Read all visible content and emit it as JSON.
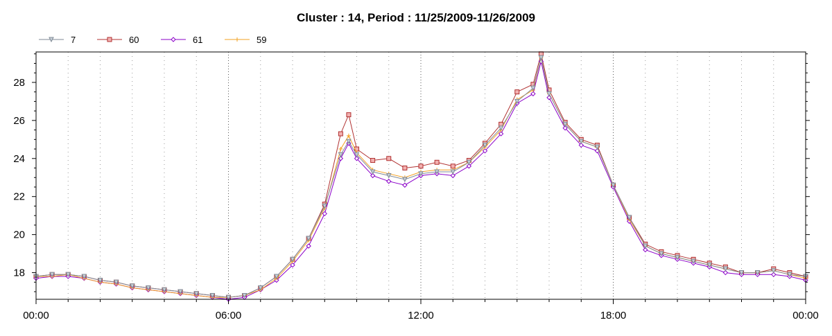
{
  "chart_data": {
    "type": "line",
    "title": "Cluster : 14, Period : 11/25/2009-11/26/2009",
    "xlabel": "",
    "ylabel": "",
    "x_tick_labels": [
      "00:00",
      "06:00",
      "12:00",
      "18:00",
      "00:00"
    ],
    "x_tick_hours": [
      0,
      6,
      12,
      18,
      24
    ],
    "xlim": [
      0,
      24
    ],
    "y_ticks": [
      18,
      20,
      22,
      24,
      26,
      28
    ],
    "ylim": [
      16.6,
      29.6
    ],
    "grid": "vertical dotted",
    "legend_position": "top-left",
    "x": [
      0,
      0.5,
      1,
      1.5,
      2,
      2.5,
      3,
      3.5,
      4,
      4.5,
      5,
      5.5,
      6,
      6.5,
      7,
      7.5,
      8,
      8.5,
      9,
      9.5,
      9.75,
      10,
      10.5,
      11,
      11.5,
      12,
      12.5,
      13,
      13.5,
      14,
      14.5,
      15,
      15.5,
      15.75,
      16,
      16.5,
      17,
      17.5,
      18,
      18.5,
      19,
      19.5,
      20,
      20.5,
      21,
      21.5,
      22,
      22.5,
      23,
      23.5,
      24
    ],
    "series": [
      {
        "name": "7",
        "color": "#7f8a96",
        "marker": "triangle-down",
        "values": [
          17.8,
          17.9,
          17.9,
          17.8,
          17.6,
          17.5,
          17.3,
          17.2,
          17.1,
          17.0,
          16.9,
          16.8,
          16.7,
          16.8,
          17.2,
          17.8,
          18.7,
          19.8,
          21.5,
          24.2,
          24.9,
          24.2,
          23.3,
          23.1,
          22.9,
          23.2,
          23.3,
          23.3,
          23.8,
          24.7,
          25.6,
          27.0,
          27.7,
          29.3,
          27.4,
          25.8,
          24.9,
          24.6,
          22.6,
          20.9,
          19.4,
          19.0,
          18.8,
          18.6,
          18.4,
          18.2,
          18.0,
          18.0,
          18.1,
          17.9,
          17.8
        ]
      },
      {
        "name": "60",
        "color": "#b03030",
        "marker": "square",
        "values": [
          17.8,
          17.9,
          17.9,
          17.8,
          17.6,
          17.5,
          17.3,
          17.2,
          17.1,
          17.0,
          16.9,
          16.8,
          16.7,
          16.8,
          17.2,
          17.8,
          18.7,
          19.8,
          21.6,
          25.3,
          26.3,
          24.5,
          23.9,
          24.0,
          23.5,
          23.6,
          23.8,
          23.6,
          23.9,
          24.8,
          25.8,
          27.5,
          27.9,
          29.5,
          27.6,
          25.9,
          25.0,
          24.7,
          22.6,
          20.9,
          19.5,
          19.1,
          18.9,
          18.7,
          18.5,
          18.3,
          18.0,
          18.0,
          18.2,
          18.0,
          17.8
        ]
      },
      {
        "name": "61",
        "color": "#8b00c9",
        "marker": "diamond",
        "values": [
          17.7,
          17.8,
          17.8,
          17.7,
          17.5,
          17.4,
          17.2,
          17.1,
          17.0,
          16.9,
          16.8,
          16.7,
          16.6,
          16.7,
          17.1,
          17.6,
          18.4,
          19.4,
          21.1,
          24.0,
          24.8,
          24.0,
          23.1,
          22.8,
          22.6,
          23.1,
          23.2,
          23.1,
          23.6,
          24.4,
          25.3,
          26.9,
          27.4,
          29.1,
          27.2,
          25.6,
          24.7,
          24.4,
          22.5,
          20.7,
          19.2,
          18.9,
          18.7,
          18.5,
          18.3,
          18.0,
          17.9,
          17.9,
          17.9,
          17.8,
          17.6
        ]
      },
      {
        "name": "59",
        "color": "#f2a020",
        "marker": "plus",
        "values": [
          17.8,
          17.8,
          17.9,
          17.7,
          17.5,
          17.4,
          17.2,
          17.1,
          17.0,
          16.9,
          16.8,
          16.7,
          16.7,
          16.8,
          17.1,
          17.7,
          18.6,
          19.7,
          21.4,
          24.5,
          25.2,
          24.3,
          23.4,
          23.2,
          23.0,
          23.3,
          23.4,
          23.4,
          23.8,
          24.6,
          25.5,
          27.1,
          27.6,
          29.3,
          27.4,
          25.8,
          24.9,
          24.6,
          22.6,
          20.8,
          19.4,
          19.0,
          18.8,
          18.6,
          18.4,
          18.2,
          18.0,
          18.0,
          18.1,
          17.9,
          17.7
        ]
      }
    ]
  }
}
